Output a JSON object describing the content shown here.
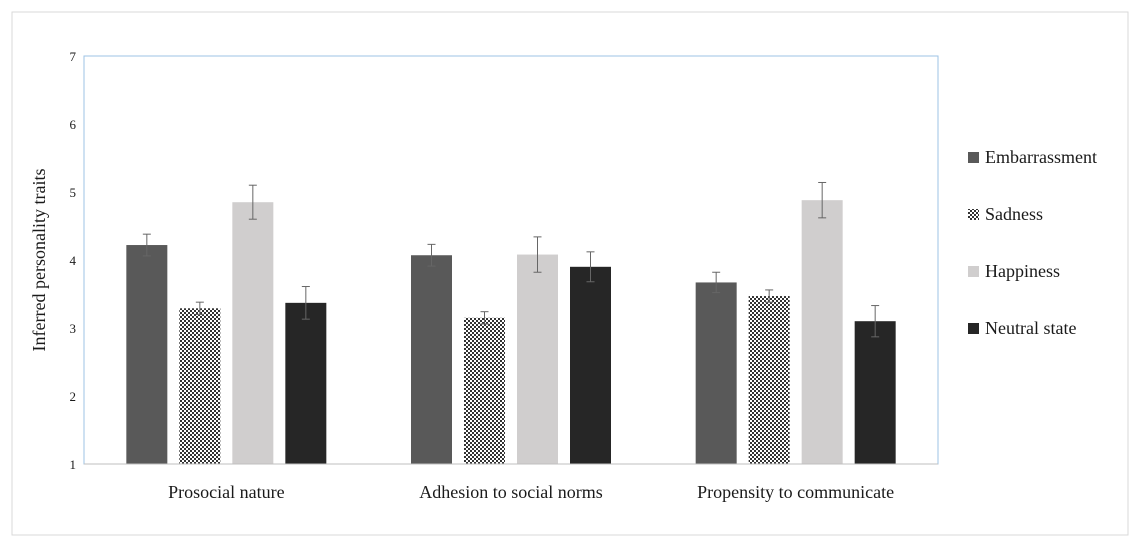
{
  "chart_data": {
    "type": "bar",
    "title": "",
    "xlabel": "",
    "ylabel": "Inferred personality traits",
    "ylim": [
      1,
      7
    ],
    "yticks": [
      1,
      2,
      3,
      4,
      5,
      6,
      7
    ],
    "grid": false,
    "legend_position": "right",
    "categories": [
      "Prosocial nature",
      "Adhesion to social norms",
      "Propensity to communicate"
    ],
    "series": [
      {
        "name": "Embarrassment",
        "pattern": "solid",
        "color": "#595959",
        "values": [
          4.22,
          4.07,
          3.67
        ],
        "errors": [
          0.16,
          0.16,
          0.15
        ]
      },
      {
        "name": "Sadness",
        "pattern": "checkerboard",
        "color": "#333333",
        "values": [
          3.29,
          3.15,
          3.47
        ],
        "errors": [
          0.09,
          0.09,
          0.09
        ]
      },
      {
        "name": "Happiness",
        "pattern": "solid",
        "color": "#d0cece",
        "values": [
          4.85,
          4.08,
          4.88
        ],
        "errors": [
          0.25,
          0.26,
          0.26
        ]
      },
      {
        "name": "Neutral state",
        "pattern": "solid",
        "color": "#262626",
        "values": [
          3.37,
          3.9,
          3.1
        ],
        "errors": [
          0.24,
          0.22,
          0.23
        ]
      }
    ]
  }
}
